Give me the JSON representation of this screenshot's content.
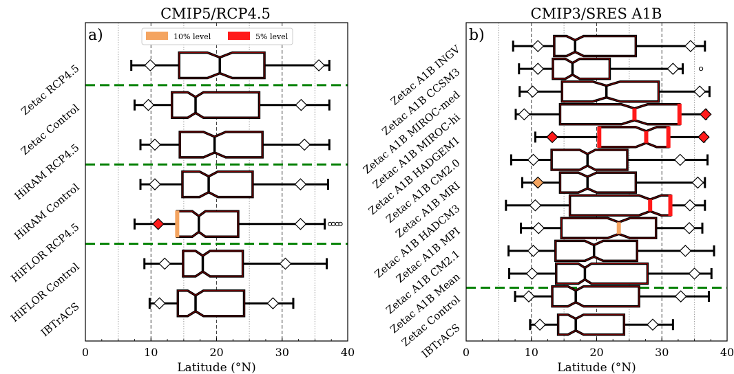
{
  "chart_data": [
    {
      "type": "box",
      "panel_letter": "a)",
      "title": "CMIP5/RCP4.5",
      "xlabel": "Latitude (°N)",
      "xlim": [
        0,
        40
      ],
      "xticks": [
        0,
        10,
        20,
        30,
        40
      ],
      "vertical_gridlines": [
        5,
        10,
        15,
        20,
        25,
        30,
        35
      ],
      "legend": {
        "placement": "top-center",
        "entries": [
          {
            "label": "10% level",
            "color": "#f4a460"
          },
          {
            "label": "5% level",
            "color": "#ff1a1a"
          }
        ]
      },
      "group_separators_after_rows": [
        1,
        3,
        5
      ],
      "rows": [
        {
          "label": "Zetac RCP4.5",
          "whisker_low": 7,
          "q1": 14.3,
          "median": 20.5,
          "q3": 27.3,
          "whisker_high": 37.2,
          "notch_low": 18.6,
          "notch_high": 22.4,
          "diamond_low": 9.9,
          "diamond_high": 35.6,
          "outliers": [],
          "median_sig": "",
          "q1_sig": "",
          "q3_sig": "",
          "diamond_low_sig": "",
          "diamond_high_sig": ""
        },
        {
          "label": "Zetac Control",
          "whisker_low": 7.5,
          "q1": 13.2,
          "median": 16.8,
          "q3": 26.5,
          "whisker_high": 37.2,
          "notch_low": 15.6,
          "notch_high": 18.0,
          "diamond_low": 9.6,
          "diamond_high": 32.9,
          "outliers": [],
          "median_sig": "",
          "q1_sig": "",
          "q3_sig": "",
          "diamond_low_sig": "",
          "diamond_high_sig": ""
        },
        {
          "label": "HiRAM RCP4.5",
          "whisker_low": 8.4,
          "q1": 14.4,
          "median": 19.7,
          "q3": 27.0,
          "whisker_high": 37.2,
          "notch_low": 18.0,
          "notch_high": 21.4,
          "diamond_low": 10.6,
          "diamond_high": 33.4,
          "outliers": [],
          "median_sig": "",
          "q1_sig": "",
          "q3_sig": "",
          "diamond_low_sig": "",
          "diamond_high_sig": ""
        },
        {
          "label": "HiRAM Control",
          "whisker_low": 8.4,
          "q1": 14.8,
          "median": 18.8,
          "q3": 25.5,
          "whisker_high": 37.0,
          "notch_low": 17.4,
          "notch_high": 20.2,
          "diamond_low": 10.6,
          "diamond_high": 32.8,
          "outliers": [],
          "median_sig": "",
          "q1_sig": "",
          "q3_sig": "",
          "diamond_low_sig": "",
          "diamond_high_sig": ""
        },
        {
          "label": "HiFLOR RCP4.5",
          "whisker_low": 7.5,
          "q1": 14.0,
          "median": 17.3,
          "q3": 23.3,
          "whisker_high": 36.5,
          "notch_low": 16.3,
          "notch_high": 18.3,
          "diamond_low": 11.1,
          "diamond_high": 32.8,
          "outliers": [
            37.3,
            37.8,
            38.4,
            38.9
          ],
          "median_sig": "",
          "q1_sig": "10%",
          "q3_sig": "",
          "diamond_low_sig": "5%",
          "diamond_high_sig": ""
        },
        {
          "label": "HiFLOR Control",
          "whisker_low": 9.0,
          "q1": 14.9,
          "median": 17.9,
          "q3": 24.0,
          "whisker_high": 36.8,
          "notch_low": 16.8,
          "notch_high": 19.0,
          "diamond_low": 12.1,
          "diamond_high": 30.5,
          "outliers": [],
          "median_sig": "",
          "q1_sig": "",
          "q3_sig": "",
          "diamond_low_sig": "",
          "diamond_high_sig": ""
        },
        {
          "label": "IBTrACS",
          "whisker_low": 9.8,
          "q1": 14.1,
          "median": 16.8,
          "q3": 24.2,
          "whisker_high": 31.7,
          "notch_low": 15.6,
          "notch_high": 18.0,
          "diamond_low": 11.3,
          "diamond_high": 28.6,
          "outliers": [],
          "median_sig": "",
          "q1_sig": "",
          "q3_sig": "",
          "diamond_low_sig": "",
          "diamond_high_sig": ""
        }
      ]
    },
    {
      "type": "box",
      "panel_letter": "b)",
      "title": "CMIP3/SRES A1B",
      "xlabel": "Latitude (°N)",
      "xlim": [
        0,
        40
      ],
      "xticks": [
        0,
        10,
        20,
        30,
        40
      ],
      "vertical_gridlines": [
        5,
        10,
        15,
        20,
        25,
        30,
        35
      ],
      "group_separators_after_rows": [
        11
      ],
      "rows": [
        {
          "label": "Zetac A1B INGV",
          "whisker_low": 7.2,
          "q1": 13.5,
          "median": 16.7,
          "q3": 26.0,
          "whisker_high": 36.6,
          "notch_low": 15.4,
          "notch_high": 18.0,
          "diamond_low": 11.0,
          "diamond_high": 34.4,
          "outliers": [],
          "median_sig": "",
          "q1_sig": "",
          "q3_sig": "",
          "diamond_low_sig": "",
          "diamond_high_sig": ""
        },
        {
          "label": "Zetac A1B CCSM3",
          "whisker_low": 8.1,
          "q1": 13.3,
          "median": 16.3,
          "q3": 22.0,
          "whisker_high": 33.2,
          "notch_low": 15.2,
          "notch_high": 17.4,
          "diamond_low": 11.0,
          "diamond_high": 31.7,
          "outliers": [
            36.0
          ],
          "median_sig": "",
          "q1_sig": "",
          "q3_sig": "",
          "diamond_low_sig": "",
          "diamond_high_sig": ""
        },
        {
          "label": "Zetac A1B MIROC-med",
          "whisker_low": 8.2,
          "q1": 14.7,
          "median": 21.5,
          "q3": 29.5,
          "whisker_high": 37.3,
          "notch_low": 19.4,
          "notch_high": 23.6,
          "diamond_low": 10.2,
          "diamond_high": 35.8,
          "outliers": [],
          "median_sig": "",
          "q1_sig": "",
          "q3_sig": "",
          "diamond_low_sig": "",
          "diamond_high_sig": ""
        },
        {
          "label": "Zetac A1B MIROC-hi",
          "whisker_low": 7.6,
          "q1": 14.4,
          "median": 25.8,
          "q3": 32.7,
          "whisker_high": 36.8,
          "notch_low": 23.8,
          "notch_high": 27.8,
          "diamond_low": 8.9,
          "diamond_high": 36.7,
          "outliers": [],
          "median_sig": "5%",
          "q1_sig": "",
          "q3_sig": "5%",
          "diamond_low_sig": "",
          "diamond_high_sig": "5%"
        },
        {
          "label": "Zetac A1B HADGEM1",
          "whisker_low": 10.6,
          "q1": 20.4,
          "median": 27.6,
          "q3": 31.0,
          "whisker_high": 36.5,
          "notch_low": 26.0,
          "notch_high": 29.2,
          "diamond_low": 13.2,
          "diamond_high": 36.4,
          "outliers": [],
          "median_sig": "5%",
          "q1_sig": "5%",
          "q3_sig": "5%",
          "diamond_low_sig": "5%",
          "diamond_high_sig": "5%"
        },
        {
          "label": "Zetac A1B CM2.0",
          "whisker_low": 6.9,
          "q1": 13.1,
          "median": 18.6,
          "q3": 24.7,
          "whisker_high": 37.0,
          "notch_low": 17.4,
          "notch_high": 19.8,
          "diamond_low": 10.3,
          "diamond_high": 32.8,
          "outliers": [],
          "median_sig": "",
          "q1_sig": "",
          "q3_sig": "",
          "diamond_low_sig": "",
          "diamond_high_sig": ""
        },
        {
          "label": "Zetac A1B MRI",
          "whisker_low": 8.6,
          "q1": 14.4,
          "median": 18.6,
          "q3": 26.0,
          "whisker_high": 36.6,
          "notch_low": 17.2,
          "notch_high": 20.0,
          "diamond_low": 11.0,
          "diamond_high": 35.5,
          "outliers": [],
          "median_sig": "",
          "q1_sig": "",
          "q3_sig": "",
          "diamond_low_sig": "10%",
          "diamond_high_sig": ""
        },
        {
          "label": "Zetac A1B HADCM3",
          "whisker_low": 6.1,
          "q1": 15.9,
          "median": 28.2,
          "q3": 31.3,
          "whisker_high": 36.6,
          "notch_low": 26.5,
          "notch_high": 29.9,
          "diamond_low": 10.6,
          "diamond_high": 34.3,
          "outliers": [],
          "median_sig": "5%",
          "q1_sig": "",
          "q3_sig": "5%",
          "diamond_low_sig": "",
          "diamond_high_sig": ""
        },
        {
          "label": "Zetac A1B MPI",
          "whisker_low": 8.4,
          "q1": 14.6,
          "median": 23.4,
          "q3": 29.1,
          "whisker_high": 36.2,
          "notch_low": 21.7,
          "notch_high": 25.1,
          "diamond_low": 11.1,
          "diamond_high": 34.2,
          "outliers": [],
          "median_sig": "10%",
          "q1_sig": "",
          "q3_sig": "",
          "diamond_low_sig": "",
          "diamond_high_sig": ""
        },
        {
          "label": "Zetac A1B CM2.1",
          "whisker_low": 6.5,
          "q1": 13.7,
          "median": 19.6,
          "q3": 26.2,
          "whisker_high": 38.0,
          "notch_low": 18.2,
          "notch_high": 21.0,
          "diamond_low": 10.3,
          "diamond_high": 33.6,
          "outliers": [],
          "median_sig": "",
          "q1_sig": "",
          "q3_sig": "",
          "diamond_low_sig": "",
          "diamond_high_sig": ""
        },
        {
          "label": "Zetac A1B Mean",
          "whisker_low": 6.6,
          "q1": 13.8,
          "median": 18.2,
          "q3": 27.8,
          "whisker_high": 37.6,
          "notch_low": 17.2,
          "notch_high": 19.2,
          "diamond_low": 10.1,
          "diamond_high": 35.0,
          "outliers": [],
          "median_sig": "",
          "q1_sig": "",
          "q3_sig": "",
          "diamond_low_sig": "",
          "diamond_high_sig": ""
        },
        {
          "label": "Zetac Control",
          "whisker_low": 7.5,
          "q1": 13.2,
          "median": 16.8,
          "q3": 26.5,
          "whisker_high": 37.2,
          "notch_low": 15.6,
          "notch_high": 18.0,
          "diamond_low": 9.6,
          "diamond_high": 32.9,
          "outliers": [],
          "median_sig": "",
          "q1_sig": "",
          "q3_sig": "",
          "diamond_low_sig": "",
          "diamond_high_sig": ""
        },
        {
          "label": "IBTrACS",
          "whisker_low": 9.8,
          "q1": 14.1,
          "median": 16.8,
          "q3": 24.2,
          "whisker_high": 31.7,
          "notch_low": 15.6,
          "notch_high": 18.0,
          "diamond_low": 11.3,
          "diamond_high": 28.6,
          "outliers": [],
          "median_sig": "",
          "q1_sig": "",
          "q3_sig": "",
          "diamond_low_sig": "",
          "diamond_high_sig": ""
        }
      ]
    }
  ],
  "colors": {
    "box_edge": "#000000",
    "box_inner_edge": "#8b0000",
    "separator": "#008000",
    "gridline": "#808080",
    "sig_10": "#f4a460",
    "sig_5": "#ff1a1a"
  }
}
